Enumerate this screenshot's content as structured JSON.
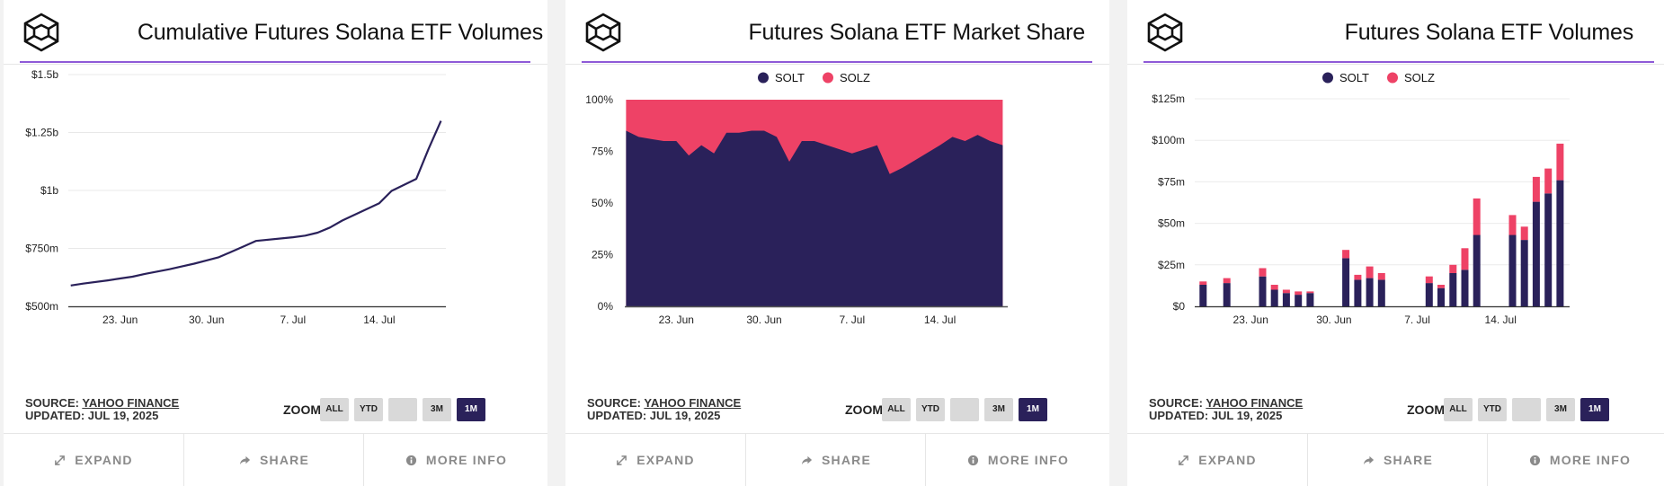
{
  "colors": {
    "accent": "#2a215a",
    "solt": "#2a215a",
    "solz": "#ee4266",
    "rule": "#8e5ad7"
  },
  "footer": {
    "expand": "EXPAND",
    "share": "SHARE",
    "more_info": "MORE INFO"
  },
  "zoom": {
    "label": "ZOOM",
    "buttons": [
      "ALL",
      "YTD",
      "",
      "3M",
      "1M"
    ],
    "active": "1M"
  },
  "source": {
    "prefix": "SOURCE:",
    "name": "YAHOO FINANCE",
    "updated": "UPDATED: JUL 19, 2025"
  },
  "icons": {
    "logo": "cube-logo-icon",
    "expand": "expand-arrows-icon",
    "share": "share-arrow-icon",
    "info": "info-circle-icon"
  },
  "chart_data": [
    {
      "type": "line",
      "title": "Cumulative Futures Solana ETF Volumes",
      "x_ticks": [
        {
          "label": "23. Jun",
          "day": 23
        },
        {
          "label": "30. Jun",
          "day": 30
        },
        {
          "label": "7. Jul",
          "day": 37
        },
        {
          "label": "14. Jul",
          "day": 44
        }
      ],
      "y_ticks": [
        {
          "label": "$500m",
          "value": 500
        },
        {
          "label": "$750m",
          "value": 750
        },
        {
          "label": "$1b",
          "value": 1000
        },
        {
          "label": "$1.25b",
          "value": 1250
        },
        {
          "label": "$1.5b",
          "value": 1500
        }
      ],
      "xlim": [
        18.8,
        49.4
      ],
      "ylim": [
        500,
        1500
      ],
      "units": "millions USD",
      "series": [
        {
          "color": "#2a215a",
          "x": [
            19,
            20,
            22,
            23,
            24,
            25,
            26,
            27,
            28,
            29,
            30,
            31,
            32,
            33,
            34,
            37,
            38,
            39,
            40,
            41,
            44,
            45,
            47,
            48,
            49
          ],
          "y": [
            590,
            598,
            612,
            620,
            628,
            640,
            650,
            660,
            672,
            684,
            698,
            712,
            735,
            758,
            782,
            798,
            805,
            818,
            840,
            870,
            945,
            998,
            1050,
            1180,
            1300
          ]
        }
      ]
    },
    {
      "type": "area",
      "stacked": "percent",
      "title": "Futures Solana ETF Market Share",
      "legend": [
        "SOLT",
        "SOLZ"
      ],
      "legend_position": "top",
      "x_ticks": [
        {
          "label": "23. Jun",
          "day": 23
        },
        {
          "label": "30. Jun",
          "day": 30
        },
        {
          "label": "7. Jul",
          "day": 37
        },
        {
          "label": "14. Jul",
          "day": 44
        }
      ],
      "y_ticks": [
        {
          "label": "0%",
          "value": 0
        },
        {
          "label": "25%",
          "value": 25
        },
        {
          "label": "50%",
          "value": 50
        },
        {
          "label": "75%",
          "value": 75
        },
        {
          "label": "100%",
          "value": 100
        }
      ],
      "xlim": [
        18.9,
        49.4
      ],
      "ylim": [
        0,
        100
      ],
      "series": [
        {
          "name": "SOLT",
          "color": "#2a215a",
          "x": [
            19,
            20,
            21,
            22,
            23,
            24,
            25,
            26,
            27,
            28,
            29,
            30,
            31,
            32,
            33,
            34,
            37,
            38,
            39,
            40,
            41,
            44,
            45,
            46,
            47,
            48,
            49
          ],
          "y": [
            85,
            82,
            81,
            80,
            80,
            73,
            78,
            74,
            84,
            84,
            85,
            85,
            82,
            70,
            80,
            80,
            74,
            76,
            78,
            64,
            67,
            78,
            82,
            80,
            83,
            80,
            78
          ]
        },
        {
          "name": "SOLZ",
          "color": "#ee4266",
          "note_value": 100
        }
      ]
    },
    {
      "type": "bar",
      "stacked": true,
      "title": "Futures Solana ETF Volumes",
      "legend": [
        "SOLT",
        "SOLZ"
      ],
      "legend_position": "top",
      "x_ticks": [
        {
          "label": "23. Jun",
          "day": 23
        },
        {
          "label": "30. Jun",
          "day": 30
        },
        {
          "label": "7. Jul",
          "day": 37
        },
        {
          "label": "14. Jul",
          "day": 44
        }
      ],
      "y_ticks": [
        {
          "label": "$0",
          "value": 0
        },
        {
          "label": "$25m",
          "value": 25
        },
        {
          "label": "$50m",
          "value": 50
        },
        {
          "label": "$75m",
          "value": 75
        },
        {
          "label": "$100m",
          "value": 100
        },
        {
          "label": "$125m",
          "value": 125
        }
      ],
      "xlim": [
        18.3,
        49.8
      ],
      "ylim": [
        0,
        125
      ],
      "units": "millions USD",
      "x": [
        19,
        21,
        24,
        25,
        26,
        27,
        28,
        31,
        32,
        33,
        34,
        38,
        39,
        40,
        41,
        42,
        45,
        46,
        47,
        48,
        49
      ],
      "series": [
        {
          "name": "SOLT",
          "color": "#2a215a",
          "values": [
            13,
            14,
            18,
            10,
            8,
            7,
            8,
            29,
            16,
            17,
            16,
            14,
            11,
            20,
            22,
            43,
            43,
            40,
            63,
            68,
            76
          ]
        },
        {
          "name": "SOLZ",
          "color": "#ee4266",
          "values": [
            2,
            3,
            5,
            3,
            2,
            2,
            1,
            5,
            3,
            7,
            4,
            4,
            2,
            5,
            13,
            22,
            12,
            8,
            15,
            15,
            22
          ]
        }
      ]
    }
  ]
}
